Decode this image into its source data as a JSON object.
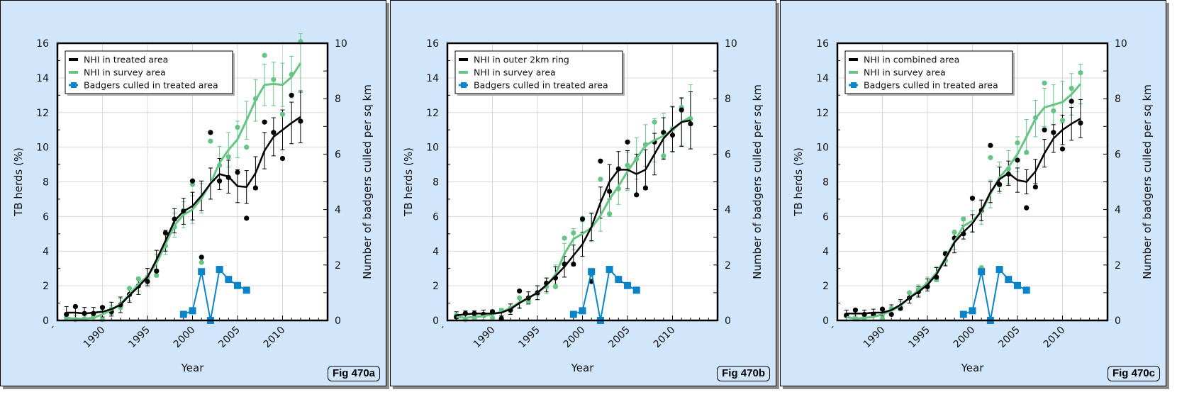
{
  "colors": {
    "treated": "#000000",
    "survey": "#66c485",
    "badgers": "#0a84c8",
    "panel_bg": "#d2e6fb",
    "grid": "#d9d9d9"
  },
  "charts": [
    {
      "badge": "Fig 470a",
      "chart_data": {
        "type": "line",
        "xlabel": "Year",
        "ylabel": "TB herds (%)",
        "y2label": "Number of badgers culled per sq km",
        "xlim": [
          1985,
          2015
        ],
        "ylim": [
          0,
          16
        ],
        "y2lim": [
          0,
          10
        ],
        "x_ticks": [
          "´",
          "1990",
          "1995",
          "2000",
          "2005",
          "2010"
        ],
        "y_ticks": [
          "0",
          "2",
          "4",
          "6",
          "8",
          "10",
          "12",
          "14",
          "16"
        ],
        "y2_ticks": [
          "0",
          "2",
          "4",
          "6",
          "8",
          "10"
        ],
        "grid": true,
        "legend": {
          "position": "top-left",
          "entries": [
            "NHI in treated area",
            "NHI in survey area",
            "Badgers culled in treated area"
          ]
        },
        "series": [
          {
            "name": "NHI in treated area",
            "axis": "left",
            "x": [
              1986,
              1987,
              1988,
              1989,
              1990,
              1991,
              1992,
              1993,
              1994,
              1995,
              1996,
              1997,
              1998,
              1999,
              2000,
              2001,
              2002,
              2003,
              2004,
              2005,
              2006,
              2007,
              2008,
              2009,
              2010,
              2011,
              2012
            ],
            "points": [
              0.35,
              0.8,
              0.4,
              0.4,
              0.75,
              0.5,
              0.9,
              1.5,
              2.0,
              2.25,
              2.85,
              5.05,
              5.85,
              6.3,
              8.05,
              3.65,
              10.85,
              8.05,
              8.25,
              8.55,
              5.9,
              7.65,
              11.45,
              10.85,
              9.35,
              13.0,
              11.5
            ],
            "trend": [
              0.45,
              0.45,
              0.4,
              0.45,
              0.5,
              0.65,
              0.9,
              1.45,
              1.95,
              2.5,
              3.5,
              4.6,
              5.75,
              6.3,
              6.6,
              7.2,
              7.9,
              8.45,
              8.3,
              7.75,
              7.7,
              8.5,
              9.8,
              10.6,
              11.0,
              11.4,
              11.75
            ],
            "err": [
              0.35,
              0.35,
              0.35,
              0.3,
              0.3,
              0.4,
              0.45,
              0.4,
              0.45,
              0.5,
              0.55,
              0.6,
              0.7,
              0.75,
              0.8,
              0.85,
              0.9,
              0.9,
              0.95,
              0.95,
              0.95,
              0.95,
              1.05,
              1.1,
              1.15,
              1.2,
              1.5
            ]
          },
          {
            "name": "NHI in survey area",
            "axis": "left",
            "x": [
              1986,
              1987,
              1988,
              1989,
              1990,
              1991,
              1992,
              1993,
              1994,
              1995,
              1996,
              1997,
              1998,
              1999,
              2000,
              2001,
              2002,
              2003,
              2004,
              2005,
              2006,
              2007,
              2008,
              2009,
              2010,
              2011,
              2012
            ],
            "points": [
              0.15,
              0.05,
              0.1,
              0.2,
              0.05,
              0.65,
              0.75,
              1.85,
              2.4,
              2.5,
              2.6,
              4.3,
              5.4,
              6.35,
              7.85,
              3.35,
              10.35,
              8.95,
              9.45,
              11.15,
              10.0,
              12.8,
              15.3,
              13.9,
              11.9,
              14.2,
              16.1
            ],
            "trend": [
              0.15,
              0.1,
              0.1,
              0.15,
              0.35,
              0.6,
              0.95,
              1.5,
              2.1,
              2.55,
              3.3,
              4.4,
              5.5,
              6.1,
              6.4,
              7.05,
              7.9,
              9.1,
              9.85,
              10.45,
              11.55,
              12.7,
              13.6,
              13.65,
              13.6,
              14.05,
              14.85
            ],
            "err": [
              0.2,
              0.2,
              0.2,
              0.2,
              0.2,
              0.25,
              0.3,
              0.35,
              0.4,
              0.45,
              0.5,
              0.6,
              0.7,
              0.75,
              0.8,
              0.85,
              0.9,
              0.95,
              1.0,
              1.05,
              1.1,
              1.2,
              1.2,
              1.25,
              1.25,
              1.2,
              1.7
            ]
          },
          {
            "name": "Badgers culled in treated area",
            "axis": "right",
            "x": [
              1999,
              2000,
              2001,
              2002,
              2003,
              2004,
              2005,
              2006
            ],
            "points": [
              0.22,
              0.35,
              1.76,
              0.0,
              1.84,
              1.48,
              1.26,
              1.09
            ]
          }
        ]
      }
    },
    {
      "badge": "Fig 470b",
      "chart_data": {
        "type": "line",
        "xlabel": "Year",
        "ylabel": "TB herds (%)",
        "y2label": "Number of badgers culled per sq km",
        "xlim": [
          1985,
          2015
        ],
        "ylim": [
          0,
          16
        ],
        "y2lim": [
          0,
          10
        ],
        "x_ticks": [
          "´",
          "1990",
          "1995",
          "2000",
          "2005",
          "2010"
        ],
        "y_ticks": [
          "0",
          "2",
          "4",
          "6",
          "8",
          "10",
          "12",
          "14",
          "16"
        ],
        "y2_ticks": [
          "0",
          "2",
          "4",
          "6",
          "8",
          "10"
        ],
        "grid": true,
        "legend": {
          "position": "top-left",
          "entries": [
            "NHI in outer 2km ring",
            "NHI in survey area",
            "Badgers culled in treated area"
          ]
        },
        "series": [
          {
            "name": "NHI in outer 2km ring",
            "axis": "left",
            "x": [
              1986,
              1987,
              1988,
              1989,
              1990,
              1991,
              1992,
              1993,
              1994,
              1995,
              1996,
              1997,
              1998,
              1999,
              2000,
              2001,
              2002,
              2003,
              2004,
              2005,
              2006,
              2007,
              2008,
              2009,
              2010,
              2011,
              2012
            ],
            "points": [
              0.2,
              0.4,
              0.4,
              0.35,
              0.5,
              0.1,
              0.6,
              1.7,
              1.3,
              1.6,
              2.15,
              2.45,
              3.25,
              3.25,
              5.85,
              2.25,
              9.2,
              7.45,
              8.75,
              10.3,
              7.25,
              7.65,
              10.3,
              10.85,
              10.7,
              12.15,
              11.35
            ],
            "trend": [
              0.3,
              0.35,
              0.4,
              0.4,
              0.4,
              0.45,
              0.65,
              1.0,
              1.3,
              1.6,
              2.05,
              2.55,
              3.1,
              3.75,
              4.4,
              5.4,
              6.8,
              8.0,
              8.7,
              8.7,
              8.45,
              8.7,
              9.6,
              10.5,
              11.05,
              11.45,
              11.55
            ],
            "err": [
              0.2,
              0.2,
              0.15,
              0.2,
              0.2,
              0.2,
              0.3,
              0.3,
              0.35,
              0.4,
              0.4,
              0.55,
              0.6,
              0.6,
              0.7,
              0.8,
              0.9,
              1.0,
              1.05,
              1.1,
              1.15,
              1.15,
              1.2,
              1.2,
              1.3,
              1.4,
              1.65
            ]
          },
          {
            "name": "NHI in survey area",
            "axis": "left",
            "x": [
              1986,
              1987,
              1988,
              1989,
              1990,
              1991,
              1992,
              1993,
              1994,
              1995,
              1996,
              1997,
              1998,
              1999,
              2000,
              2001,
              2002,
              2003,
              2004,
              2005,
              2006,
              2007,
              2008,
              2009,
              2010,
              2011,
              2012
            ],
            "points": [
              0.3,
              0.05,
              0.1,
              0.35,
              0.15,
              0.55,
              0.7,
              1.3,
              1.1,
              1.55,
              1.95,
              1.95,
              4.75,
              5.05,
              5.9,
              2.65,
              8.15,
              6.15,
              7.6,
              8.95,
              9.3,
              10.15,
              11.45,
              9.5,
              11.05,
              12.3,
              11.65
            ],
            "trend": [
              0.2,
              0.15,
              0.2,
              0.25,
              0.35,
              0.5,
              0.7,
              1.05,
              1.3,
              1.6,
              2.0,
              2.65,
              3.85,
              4.7,
              5.0,
              5.35,
              6.05,
              7.0,
              7.75,
              8.6,
              9.35,
              10.1,
              10.4,
              10.65,
              11.0,
              11.45,
              11.75
            ],
            "err": [
              0.2,
              0.2,
              0.2,
              0.2,
              0.2,
              0.2,
              0.25,
              0.3,
              0.35,
              0.4,
              0.45,
              0.55,
              0.6,
              0.6,
              0.7,
              0.8,
              0.9,
              1.0,
              1.05,
              1.1,
              1.2,
              1.2,
              1.25,
              1.3,
              1.3,
              1.35,
              1.85
            ]
          },
          {
            "name": "Badgers culled in treated area",
            "axis": "right",
            "x": [
              1999,
              2000,
              2001,
              2002,
              2003,
              2004,
              2005,
              2006
            ],
            "points": [
              0.22,
              0.35,
              1.76,
              0.0,
              1.84,
              1.48,
              1.26,
              1.09
            ]
          }
        ]
      }
    },
    {
      "badge": "Fig 470c",
      "chart_data": {
        "type": "line",
        "xlabel": "Year",
        "ylabel": "TB herds (%)",
        "y2label": "Number of badgers culled per sq km",
        "xlim": [
          1985,
          2015
        ],
        "ylim": [
          0,
          16
        ],
        "y2lim": [
          0,
          10
        ],
        "x_ticks": [
          "´",
          "1990",
          "1995",
          "2000",
          "2005",
          "2010"
        ],
        "y_ticks": [
          "0",
          "2",
          "4",
          "6",
          "8",
          "10",
          "12",
          "14",
          "16"
        ],
        "y2_ticks": [
          "0",
          "2",
          "4",
          "6",
          "8",
          "10"
        ],
        "grid": true,
        "legend": {
          "position": "top-left",
          "entries": [
            "NHI in combined area",
            "NHI in survey area",
            "Badgers culled in treated area"
          ]
        },
        "series": [
          {
            "name": "NHI in combined area",
            "axis": "left",
            "x": [
              1986,
              1987,
              1988,
              1989,
              1990,
              1991,
              1992,
              1993,
              1994,
              1995,
              1996,
              1997,
              1998,
              1999,
              2000,
              2001,
              2002,
              2003,
              2004,
              2005,
              2006,
              2007,
              2008,
              2009,
              2010,
              2011,
              2012
            ],
            "points": [
              0.3,
              0.6,
              0.35,
              0.35,
              0.65,
              0.35,
              0.7,
              1.3,
              1.65,
              1.95,
              2.5,
              3.85,
              4.75,
              5.0,
              7.05,
              6.35,
              10.1,
              7.85,
              8.45,
              9.25,
              6.5,
              7.7,
              11.0,
              10.85,
              9.9,
              12.65,
              11.4
            ],
            "trend": [
              0.4,
              0.4,
              0.4,
              0.45,
              0.45,
              0.6,
              0.9,
              1.3,
              1.65,
              2.05,
              2.65,
              3.55,
              4.5,
              5.1,
              5.6,
              6.35,
              7.4,
              8.15,
              8.5,
              8.1,
              8.0,
              8.6,
              9.65,
              10.5,
              11.0,
              11.35,
              11.65
            ],
            "err": [
              0.2,
              0.2,
              0.2,
              0.2,
              0.2,
              0.3,
              0.3,
              0.3,
              0.3,
              0.35,
              0.4,
              0.4,
              0.6,
              0.4,
              0.5,
              0.6,
              0.6,
              0.7,
              0.7,
              0.7,
              0.7,
              0.7,
              0.8,
              0.8,
              0.85,
              0.95,
              1.1
            ]
          },
          {
            "name": "NHI in survey area",
            "axis": "left",
            "x": [
              1986,
              1987,
              1988,
              1989,
              1990,
              1991,
              1992,
              1993,
              1994,
              1995,
              1996,
              1997,
              1998,
              1999,
              2000,
              2001,
              2002,
              2003,
              2004,
              2005,
              2006,
              2007,
              2008,
              2009,
              2010,
              2011,
              2012
            ],
            "points": [
              0.25,
              0.1,
              0.15,
              0.35,
              0.1,
              0.7,
              0.75,
              1.6,
              1.8,
              2.1,
              2.35,
              3.45,
              5.1,
              5.85,
              7.05,
              3.05,
              9.4,
              7.8,
              8.75,
              10.25,
              9.7,
              11.7,
              13.7,
              12.1,
              11.55,
              13.4,
              14.3
            ],
            "trend": [
              0.2,
              0.1,
              0.15,
              0.2,
              0.35,
              0.55,
              0.85,
              1.3,
              1.75,
              2.15,
              2.75,
              3.6,
              4.55,
              5.45,
              5.75,
              6.25,
              7.3,
              8.25,
              8.85,
              9.6,
              10.6,
              11.65,
              12.3,
              12.45,
              12.6,
              13.05,
              13.65
            ],
            "err": [
              0.2,
              0.2,
              0.2,
              0.2,
              0.2,
              0.2,
              0.25,
              0.3,
              0.3,
              0.35,
              0.35,
              0.4,
              0.45,
              0.5,
              0.6,
              0.7,
              0.8,
              0.9,
              0.95,
              1.0,
              1.0,
              1.05,
              1.1,
              1.15,
              1.2,
              1.2,
              1.15
            ]
          },
          {
            "name": "Badgers culled in treated area",
            "axis": "right",
            "x": [
              1999,
              2000,
              2001,
              2002,
              2003,
              2004,
              2005,
              2006
            ],
            "points": [
              0.22,
              0.35,
              1.76,
              0.0,
              1.84,
              1.48,
              1.26,
              1.09
            ]
          }
        ]
      }
    }
  ]
}
